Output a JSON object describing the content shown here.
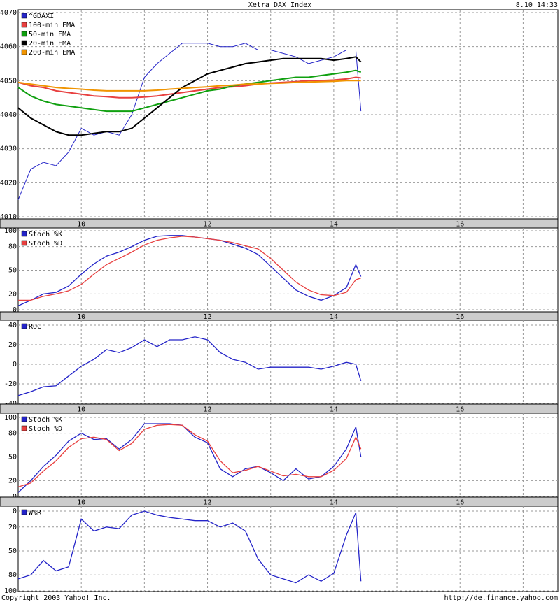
{
  "title": "Xetra DAX Index",
  "timestamp": "8.10 14:33",
  "copyright": "Copyright 2003 Yahoo! Inc.",
  "source_url": "http://de.finance.yahoo.com",
  "chart_data": [
    {
      "type": "line",
      "legend": "top-left",
      "grid": true,
      "x": [
        9.0,
        9.2,
        9.4,
        9.6,
        9.8,
        10.0,
        10.2,
        10.4,
        10.6,
        10.8,
        11.0,
        11.2,
        11.4,
        11.6,
        11.8,
        12.0,
        12.2,
        12.4,
        12.6,
        12.8,
        13.0,
        13.2,
        13.4,
        13.6,
        13.8,
        14.0,
        14.2,
        14.35,
        14.43
      ],
      "xlim": [
        9,
        17.55
      ],
      "xgrid": [
        10,
        11,
        12,
        13,
        14,
        15,
        16,
        17
      ],
      "xticks": [
        10,
        12,
        14,
        16
      ],
      "ylim": [
        4010,
        4070
      ],
      "yticks": [
        4010,
        4020,
        4030,
        4040,
        4050,
        4060,
        4070
      ],
      "series": [
        {
          "name": "^GDAXI",
          "color": "#2424c8",
          "values": [
            4015,
            4024,
            4026,
            4025,
            4029,
            4036,
            4034,
            4035,
            4034,
            4040,
            4051,
            4055,
            4058,
            4061,
            4061,
            4061,
            4060,
            4060,
            4061,
            4059,
            4059,
            4058,
            4057,
            4055,
            4056,
            4057,
            4059,
            4059,
            4041
          ]
        },
        {
          "name": "100-min EMA",
          "color": "#e84040",
          "values": [
            4049.5,
            4048.5,
            4048,
            4047,
            4046.5,
            4046,
            4045.5,
            4045.3,
            4045,
            4045,
            4045.2,
            4045.5,
            4046,
            4046.5,
            4047,
            4047.5,
            4048,
            4048.2,
            4048.5,
            4049,
            4049.3,
            4049.5,
            4049.7,
            4050,
            4050,
            4050.2,
            4050.5,
            4051,
            4050.8
          ]
        },
        {
          "name": "50-min EMA",
          "color": "#10a010",
          "values": [
            4048,
            4045.5,
            4044,
            4043,
            4042.5,
            4042,
            4041.5,
            4041,
            4041,
            4041,
            4042,
            4043,
            4044,
            4045,
            4046,
            4047,
            4047.5,
            4048.5,
            4049,
            4049.5,
            4050,
            4050.5,
            4051,
            4051,
            4051.5,
            4052,
            4052.5,
            4053,
            4052.5
          ]
        },
        {
          "name": "20-min EMA",
          "color": "#000000",
          "values": [
            4042,
            4039,
            4037,
            4035,
            4034,
            4034,
            4034.5,
            4035,
            4035,
            4036,
            4039,
            4042,
            4045,
            4048,
            4050,
            4052,
            4053,
            4054,
            4055,
            4055.5,
            4056,
            4056.5,
            4056.5,
            4056.5,
            4056.5,
            4056,
            4056.5,
            4057,
            4055.5
          ]
        },
        {
          "name": "200-min EMA",
          "color": "#f09400",
          "values": [
            4049.5,
            4049,
            4048.5,
            4048,
            4047.7,
            4047.5,
            4047.2,
            4047,
            4047,
            4047,
            4047,
            4047.2,
            4047.5,
            4047.7,
            4048,
            4048.2,
            4048.5,
            4048.7,
            4049,
            4049,
            4049.2,
            4049.3,
            4049.5,
            4049.6,
            4049.7,
            4049.8,
            4050,
            4050,
            4050
          ]
        }
      ]
    },
    {
      "type": "line",
      "legend": "top-left",
      "grid": true,
      "x": [
        9.0,
        9.2,
        9.4,
        9.6,
        9.8,
        10.0,
        10.2,
        10.4,
        10.6,
        10.8,
        11.0,
        11.2,
        11.4,
        11.6,
        11.8,
        12.0,
        12.2,
        12.4,
        12.6,
        12.8,
        13.0,
        13.2,
        13.4,
        13.6,
        13.8,
        14.0,
        14.2,
        14.35,
        14.43
      ],
      "xlim": [
        9,
        17.55
      ],
      "xgrid": [
        10,
        11,
        12,
        13,
        14,
        15,
        16,
        17
      ],
      "xticks": [
        10,
        12,
        14,
        16
      ],
      "ylim": [
        0,
        100
      ],
      "yticks": [
        0,
        20,
        50,
        80,
        100
      ],
      "series": [
        {
          "name": "Stoch %K",
          "color": "#2424c8",
          "values": [
            5,
            12,
            20,
            22,
            30,
            45,
            58,
            68,
            73,
            80,
            88,
            93,
            94,
            94,
            92,
            90,
            88,
            83,
            78,
            70,
            55,
            40,
            25,
            17,
            12,
            18,
            28,
            57,
            42
          ]
        },
        {
          "name": "Stoch %D",
          "color": "#e84040",
          "values": [
            12,
            12,
            17,
            20,
            24,
            32,
            45,
            57,
            65,
            73,
            82,
            88,
            91,
            93,
            92,
            90,
            88,
            85,
            81,
            77,
            65,
            50,
            35,
            25,
            19,
            18,
            22,
            38,
            40
          ]
        }
      ]
    },
    {
      "type": "line",
      "legend": "top-left",
      "grid": true,
      "x": [
        9.0,
        9.2,
        9.4,
        9.6,
        9.8,
        10.0,
        10.2,
        10.4,
        10.6,
        10.8,
        11.0,
        11.2,
        11.4,
        11.6,
        11.8,
        12.0,
        12.2,
        12.4,
        12.6,
        12.8,
        13.0,
        13.2,
        13.4,
        13.6,
        13.8,
        14.0,
        14.2,
        14.35,
        14.43
      ],
      "xlim": [
        9,
        17.55
      ],
      "xgrid": [
        10,
        11,
        12,
        13,
        14,
        15,
        16,
        17
      ],
      "xticks": [
        10,
        12,
        14,
        16
      ],
      "ylim": [
        -40,
        40
      ],
      "yticks": [
        -40,
        -20,
        0,
        20,
        40
      ],
      "series": [
        {
          "name": "ROC",
          "color": "#2424c8",
          "values": [
            -32,
            -28,
            -23,
            -22,
            -12,
            -2,
            5,
            15,
            12,
            17,
            25,
            18,
            25,
            25,
            28,
            25,
            12,
            5,
            2,
            -5,
            -3,
            -3,
            -3,
            -3,
            -5,
            -2,
            2,
            0,
            -17
          ]
        }
      ]
    },
    {
      "type": "line",
      "legend": "top-left",
      "grid": true,
      "x": [
        9.0,
        9.2,
        9.4,
        9.6,
        9.8,
        10.0,
        10.2,
        10.4,
        10.6,
        10.8,
        11.0,
        11.2,
        11.4,
        11.6,
        11.8,
        12.0,
        12.2,
        12.4,
        12.6,
        12.8,
        13.0,
        13.2,
        13.4,
        13.6,
        13.8,
        14.0,
        14.2,
        14.35,
        14.43
      ],
      "xlim": [
        9,
        17.55
      ],
      "xgrid": [
        10,
        11,
        12,
        13,
        14,
        15,
        16,
        17
      ],
      "xticks": [
        10,
        12,
        14,
        16
      ],
      "ylim": [
        0,
        100
      ],
      "yticks": [
        0,
        20,
        50,
        80,
        100
      ],
      "series": [
        {
          "name": "Stoch %K",
          "color": "#2424c8",
          "values": [
            5,
            20,
            38,
            52,
            70,
            80,
            72,
            73,
            60,
            72,
            92,
            92,
            92,
            90,
            75,
            68,
            35,
            25,
            35,
            38,
            30,
            20,
            35,
            22,
            25,
            38,
            60,
            88,
            50
          ]
        },
        {
          "name": "Stoch %D",
          "color": "#e84040",
          "values": [
            12,
            17,
            32,
            45,
            62,
            73,
            75,
            72,
            58,
            67,
            85,
            90,
            91,
            90,
            78,
            70,
            45,
            30,
            33,
            38,
            32,
            26,
            28,
            25,
            25,
            33,
            48,
            75,
            60
          ]
        }
      ]
    },
    {
      "type": "line",
      "legend": "top-left",
      "grid": true,
      "x": [
        9.0,
        9.2,
        9.4,
        9.6,
        9.8,
        10.0,
        10.2,
        10.4,
        10.6,
        10.8,
        11.0,
        11.2,
        11.4,
        11.6,
        11.8,
        12.0,
        12.2,
        12.4,
        12.6,
        12.8,
        13.0,
        13.2,
        13.4,
        13.6,
        13.8,
        14.0,
        14.2,
        14.35,
        14.43
      ],
      "xlim": [
        9,
        17.55
      ],
      "xgrid": [
        10,
        11,
        12,
        13,
        14,
        15,
        16,
        17
      ],
      "ylim": [
        100,
        0
      ],
      "yticks": [
        0,
        20,
        50,
        80,
        100
      ],
      "series": [
        {
          "name": "W%R",
          "color": "#2424c8",
          "values": [
            85,
            80,
            62,
            75,
            70,
            10,
            25,
            20,
            22,
            5,
            0,
            5,
            8,
            10,
            12,
            12,
            20,
            15,
            25,
            60,
            80,
            85,
            90,
            80,
            88,
            78,
            30,
            2,
            88
          ]
        }
      ]
    }
  ]
}
